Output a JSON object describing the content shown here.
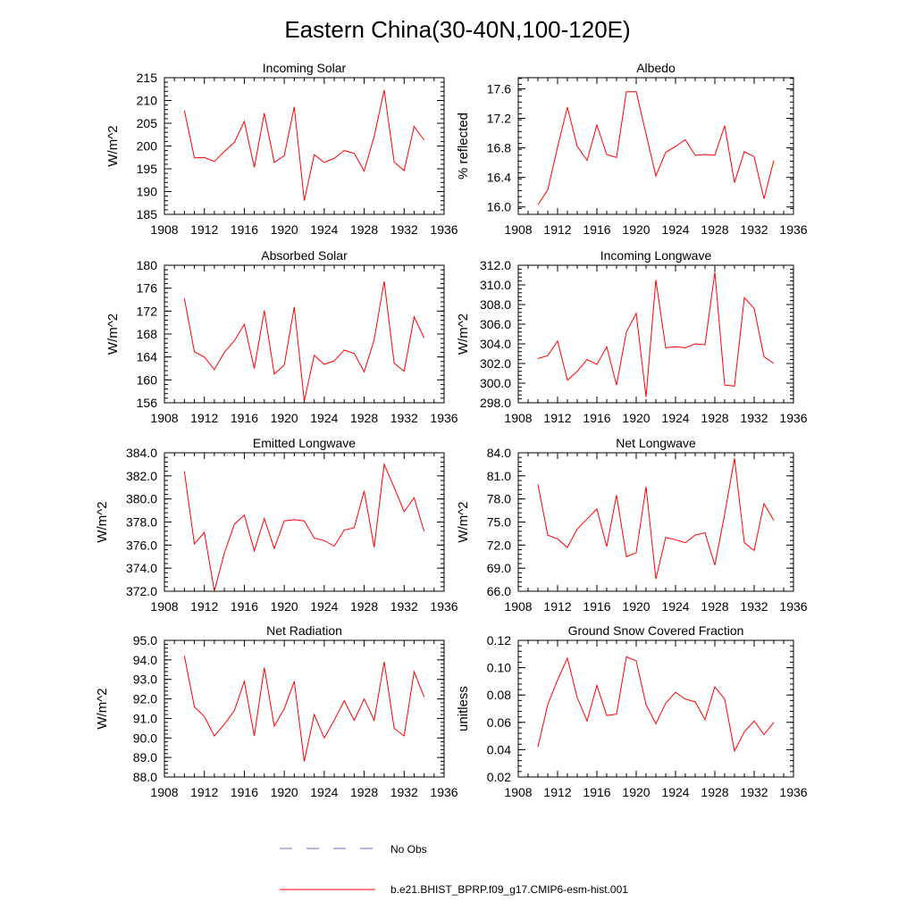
{
  "figure": {
    "title": "Eastern China(30-40N,100-120E)",
    "legend": [
      {
        "label": "No Obs",
        "color": "#6b6bd6",
        "style": "dashed"
      },
      {
        "label": "b.e21.BHIST_BPRP.f09_g17.CMIP6-esm-hist.001",
        "color": "#ff0000",
        "style": "solid"
      }
    ]
  },
  "chart_data": [
    {
      "type": "line",
      "title": "Incoming Solar",
      "xlabel": "",
      "ylabel": "W/m^2",
      "xlim": [
        1908,
        1936
      ],
      "xticks": [
        "1908",
        "1912",
        "1916",
        "1920",
        "1924",
        "1928",
        "1932",
        "1936"
      ],
      "ylim": [
        185,
        215
      ],
      "yticks": [
        "185",
        "190",
        "195",
        "200",
        "205",
        "210",
        "215"
      ],
      "grid": false,
      "x": [
        1910,
        1911,
        1912,
        1913,
        1914,
        1915,
        1916,
        1917,
        1918,
        1919,
        1920,
        1921,
        1922,
        1923,
        1924,
        1925,
        1926,
        1927,
        1928,
        1929,
        1930,
        1931,
        1932,
        1933,
        1934
      ],
      "series": [
        {
          "name": "b.e21.BHIST_BPRP.f09_g17.CMIP6-esm-hist.001",
          "color": "#ff0000",
          "values": [
            207.8,
            197.4,
            197.5,
            196.6,
            198.8,
            200.8,
            205.4,
            195.3,
            207.2,
            196.4,
            197.9,
            208.6,
            188.0,
            198.1,
            196.4,
            197.3,
            199.0,
            198.4,
            194.5,
            202.1,
            212.3,
            196.5,
            194.6,
            204.3,
            201.3
          ]
        }
      ]
    },
    {
      "type": "line",
      "title": "Albedo",
      "xlabel": "",
      "ylabel": "% reflected",
      "xlim": [
        1908,
        1936
      ],
      "xticks": [
        "1908",
        "1912",
        "1916",
        "1920",
        "1924",
        "1928",
        "1932",
        "1936"
      ],
      "ylim": [
        15.9,
        17.75
      ],
      "yticks": [
        "16.0",
        "16.4",
        "16.8",
        "17.2",
        "17.6"
      ],
      "grid": false,
      "x": [
        1910,
        1911,
        1912,
        1913,
        1914,
        1915,
        1916,
        1917,
        1918,
        1919,
        1920,
        1921,
        1922,
        1923,
        1924,
        1925,
        1926,
        1927,
        1928,
        1929,
        1930,
        1931,
        1932,
        1933,
        1934
      ],
      "series": [
        {
          "name": "b.e21.BHIST_BPRP.f09_g17.CMIP6-esm-hist.001",
          "color": "#ff0000",
          "values": [
            16.03,
            16.23,
            16.81,
            17.35,
            16.82,
            16.63,
            17.11,
            16.71,
            16.67,
            17.56,
            17.56,
            16.99,
            16.42,
            16.74,
            16.82,
            16.91,
            16.7,
            16.71,
            16.7,
            17.1,
            16.33,
            16.75,
            16.68,
            16.11,
            16.63
          ]
        }
      ]
    },
    {
      "type": "line",
      "title": "Absorbed Solar",
      "xlabel": "",
      "ylabel": "W/m^2",
      "xlim": [
        1908,
        1936
      ],
      "xticks": [
        "1908",
        "1912",
        "1916",
        "1920",
        "1924",
        "1928",
        "1932",
        "1936"
      ],
      "ylim": [
        156,
        180
      ],
      "yticks": [
        "156",
        "160",
        "164",
        "168",
        "172",
        "176",
        "180"
      ],
      "grid": false,
      "x": [
        1910,
        1911,
        1912,
        1913,
        1914,
        1915,
        1916,
        1917,
        1918,
        1919,
        1920,
        1921,
        1922,
        1923,
        1924,
        1925,
        1926,
        1927,
        1928,
        1929,
        1930,
        1931,
        1932,
        1933,
        1934
      ],
      "series": [
        {
          "name": "b.e21.BHIST_BPRP.f09_g17.CMIP6-esm-hist.001",
          "color": "#ff0000",
          "values": [
            174.2,
            164.9,
            164.0,
            161.8,
            164.8,
            166.8,
            169.7,
            162.0,
            172.1,
            161.0,
            162.6,
            172.7,
            156.3,
            164.3,
            162.7,
            163.3,
            165.2,
            164.6,
            161.4,
            167.0,
            177.2,
            162.9,
            161.5,
            171.0,
            167.3
          ]
        }
      ]
    },
    {
      "type": "line",
      "title": "Incoming Longwave",
      "xlabel": "",
      "ylabel": "W/m^2",
      "xlim": [
        1908,
        1936
      ],
      "xticks": [
        "1908",
        "1912",
        "1916",
        "1920",
        "1924",
        "1928",
        "1932",
        "1936"
      ],
      "ylim": [
        298.0,
        312.0
      ],
      "yticks": [
        "298.0",
        "300.0",
        "302.0",
        "304.0",
        "306.0",
        "308.0",
        "310.0",
        "312.0"
      ],
      "grid": false,
      "x": [
        1910,
        1911,
        1912,
        1913,
        1914,
        1915,
        1916,
        1917,
        1918,
        1919,
        1920,
        1921,
        1922,
        1923,
        1924,
        1925,
        1926,
        1927,
        1928,
        1929,
        1930,
        1931,
        1932,
        1933,
        1934
      ],
      "series": [
        {
          "name": "b.e21.BHIST_BPRP.f09_g17.CMIP6-esm-hist.001",
          "color": "#ff0000",
          "values": [
            302.5,
            302.8,
            304.3,
            300.3,
            301.2,
            302.4,
            301.9,
            303.7,
            299.8,
            305.2,
            307.1,
            298.6,
            310.5,
            303.6,
            303.7,
            303.6,
            304.0,
            303.9,
            311.3,
            299.8,
            299.7,
            308.7,
            307.6,
            302.7,
            302.0
          ]
        }
      ]
    },
    {
      "type": "line",
      "title": "Emitted Longwave",
      "xlabel": "",
      "ylabel": "W/m^2",
      "xlim": [
        1908,
        1936
      ],
      "xticks": [
        "1908",
        "1912",
        "1916",
        "1920",
        "1924",
        "1928",
        "1932",
        "1936"
      ],
      "ylim": [
        372.0,
        384.0
      ],
      "yticks": [
        "372.0",
        "374.0",
        "376.0",
        "378.0",
        "380.0",
        "382.0",
        "384.0"
      ],
      "grid": false,
      "x": [
        1910,
        1911,
        1912,
        1913,
        1914,
        1915,
        1916,
        1917,
        1918,
        1919,
        1920,
        1921,
        1922,
        1923,
        1924,
        1925,
        1926,
        1927,
        1928,
        1929,
        1930,
        1931,
        1932,
        1933,
        1934
      ],
      "series": [
        {
          "name": "b.e21.BHIST_BPRP.f09_g17.CMIP6-esm-hist.001",
          "color": "#ff0000",
          "values": [
            382.4,
            376.1,
            377.1,
            372.0,
            375.3,
            377.8,
            378.6,
            375.5,
            378.3,
            375.7,
            378.1,
            378.2,
            378.1,
            376.6,
            376.4,
            375.9,
            377.3,
            377.5,
            380.7,
            375.8,
            383.0,
            381.0,
            378.9,
            380.1,
            377.2
          ]
        }
      ]
    },
    {
      "type": "line",
      "title": "Net Longwave",
      "xlabel": "",
      "ylabel": "W/m^2",
      "xlim": [
        1908,
        1936
      ],
      "xticks": [
        "1908",
        "1912",
        "1916",
        "1920",
        "1924",
        "1928",
        "1932",
        "1936"
      ],
      "ylim": [
        66.0,
        84.0
      ],
      "yticks": [
        "66.0",
        "69.0",
        "72.0",
        "75.0",
        "78.0",
        "81.0",
        "84.0"
      ],
      "grid": false,
      "x": [
        1910,
        1911,
        1912,
        1913,
        1914,
        1915,
        1916,
        1917,
        1918,
        1919,
        1920,
        1921,
        1922,
        1923,
        1924,
        1925,
        1926,
        1927,
        1928,
        1929,
        1930,
        1931,
        1932,
        1933,
        1934
      ],
      "series": [
        {
          "name": "b.e21.BHIST_BPRP.f09_g17.CMIP6-esm-hist.001",
          "color": "#ff0000",
          "values": [
            79.9,
            73.3,
            72.8,
            71.7,
            74.1,
            75.4,
            76.7,
            71.8,
            78.5,
            70.5,
            71.0,
            79.6,
            67.6,
            73.0,
            72.7,
            72.3,
            73.3,
            73.6,
            69.4,
            76.0,
            83.3,
            72.3,
            71.3,
            77.4,
            75.2
          ]
        }
      ]
    },
    {
      "type": "line",
      "title": "Net Radiation",
      "xlabel": "",
      "ylabel": "W/m^2",
      "xlim": [
        1908,
        1936
      ],
      "xticks": [
        "1908",
        "1912",
        "1916",
        "1920",
        "1924",
        "1928",
        "1932",
        "1936"
      ],
      "ylim": [
        88.0,
        95.0
      ],
      "yticks": [
        "88.0",
        "89.0",
        "90.0",
        "91.0",
        "92.0",
        "93.0",
        "94.0",
        "95.0"
      ],
      "grid": false,
      "x": [
        1910,
        1911,
        1912,
        1913,
        1914,
        1915,
        1916,
        1917,
        1918,
        1919,
        1920,
        1921,
        1922,
        1923,
        1924,
        1925,
        1926,
        1927,
        1928,
        1929,
        1930,
        1931,
        1932,
        1933,
        1934
      ],
      "series": [
        {
          "name": "b.e21.BHIST_BPRP.f09_g17.CMIP6-esm-hist.001",
          "color": "#ff0000",
          "values": [
            94.2,
            91.6,
            91.1,
            90.1,
            90.7,
            91.4,
            92.9,
            90.1,
            93.6,
            90.6,
            91.5,
            92.9,
            88.8,
            91.2,
            90.0,
            90.9,
            91.9,
            90.9,
            92.0,
            90.9,
            93.9,
            90.5,
            90.1,
            93.4,
            92.1
          ]
        }
      ]
    },
    {
      "type": "line",
      "title": "Ground Snow Covered Fraction",
      "xlabel": "",
      "ylabel": "unitless",
      "xlim": [
        1908,
        1936
      ],
      "xticks": [
        "1908",
        "1912",
        "1916",
        "1920",
        "1924",
        "1928",
        "1932",
        "1936"
      ],
      "ylim": [
        0.02,
        0.12
      ],
      "yticks": [
        "0.02",
        "0.04",
        "0.06",
        "0.08",
        "0.10",
        "0.12"
      ],
      "grid": false,
      "x": [
        1910,
        1911,
        1912,
        1913,
        1914,
        1915,
        1916,
        1917,
        1918,
        1919,
        1920,
        1921,
        1922,
        1923,
        1924,
        1925,
        1926,
        1927,
        1928,
        1929,
        1930,
        1931,
        1932,
        1933,
        1934
      ],
      "series": [
        {
          "name": "b.e21.BHIST_BPRP.f09_g17.CMIP6-esm-hist.001",
          "color": "#ff0000",
          "values": [
            0.042,
            0.073,
            0.091,
            0.107,
            0.078,
            0.061,
            0.087,
            0.065,
            0.066,
            0.108,
            0.105,
            0.073,
            0.059,
            0.074,
            0.082,
            0.077,
            0.075,
            0.062,
            0.086,
            0.077,
            0.039,
            0.053,
            0.061,
            0.051,
            0.06
          ]
        }
      ]
    }
  ]
}
